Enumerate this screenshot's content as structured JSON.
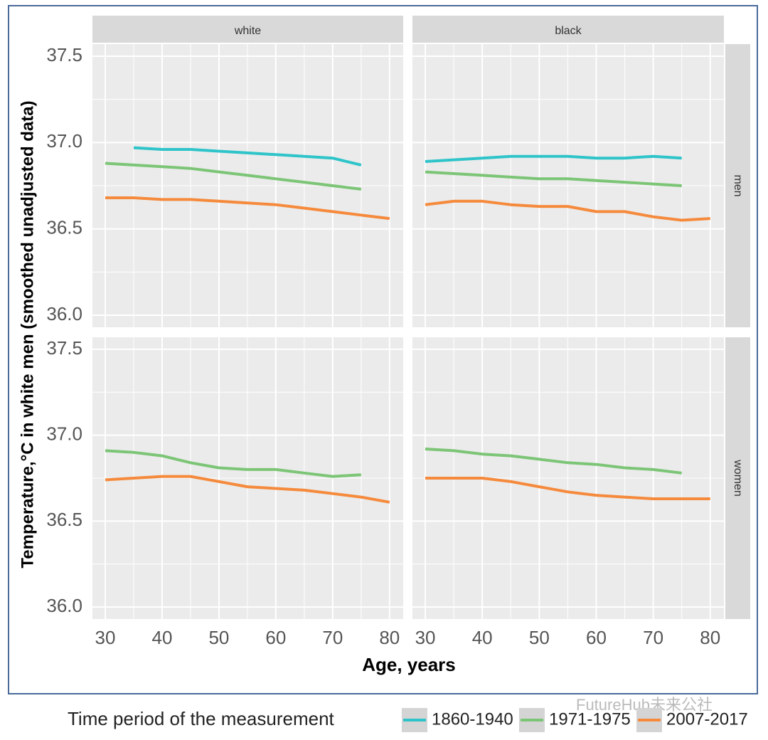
{
  "chart_data": {
    "type": "line",
    "ylabel": "Temperature,°C in white men (smoothed unadjusted data)",
    "xlabel": "Age, years",
    "legend_title": "Time period of the measurement",
    "watermark": "FutureHub未来公社",
    "columns": [
      "white",
      "black"
    ],
    "rows": [
      "men",
      "women"
    ],
    "grid": true,
    "xlim": [
      27.75,
      82.4
    ],
    "xticks": [
      30,
      40,
      50,
      60,
      70,
      80
    ],
    "ylim": [
      35.93,
      37.57
    ],
    "yticks": [
      {
        "value": 36,
        "label": "36.0"
      },
      36.5,
      {
        "value": 37,
        "label": "37.0"
      },
      37.5
    ],
    "x": [
      30,
      35,
      40,
      45,
      50,
      55,
      60,
      65,
      70,
      75,
      80
    ],
    "series": [
      {
        "name": "1860-1940",
        "color": "#2ec4c9"
      },
      {
        "name": "1971-1975",
        "color": "#7cc576"
      },
      {
        "name": "2007-2017",
        "color": "#f58a3c"
      }
    ],
    "panels": [
      [
        {
          "series": [
            {
              "values": [
                null,
                36.97,
                36.96,
                36.96,
                36.95,
                36.94,
                36.93,
                36.92,
                36.91,
                36.87,
                null
              ]
            },
            {
              "values": [
                36.88,
                36.87,
                36.86,
                36.85,
                36.83,
                36.81,
                36.79,
                36.77,
                36.75,
                36.73,
                null
              ]
            },
            {
              "values": [
                36.68,
                36.68,
                36.67,
                36.67,
                36.66,
                36.65,
                36.64,
                36.62,
                36.6,
                36.58,
                36.56
              ]
            }
          ]
        },
        {
          "series": [
            {
              "values": [
                36.89,
                36.9,
                36.91,
                36.92,
                36.92,
                36.92,
                36.91,
                36.91,
                36.92,
                36.91,
                null
              ]
            },
            {
              "values": [
                36.83,
                36.82,
                36.81,
                36.8,
                36.79,
                36.79,
                36.78,
                36.77,
                36.76,
                36.75,
                null
              ]
            },
            {
              "values": [
                36.64,
                36.66,
                36.66,
                36.64,
                36.63,
                36.63,
                36.6,
                36.6,
                36.57,
                36.55,
                36.56
              ]
            }
          ]
        }
      ],
      [
        {
          "series": [
            {
              "values": [
                null,
                null,
                null,
                null,
                null,
                null,
                null,
                null,
                null,
                null,
                null
              ]
            },
            {
              "values": [
                36.91,
                36.9,
                36.88,
                36.84,
                36.81,
                36.8,
                36.8,
                36.78,
                36.76,
                36.77,
                null
              ]
            },
            {
              "values": [
                36.74,
                36.75,
                36.76,
                36.76,
                36.73,
                36.7,
                36.69,
                36.68,
                36.66,
                36.64,
                36.61
              ]
            }
          ]
        },
        {
          "series": [
            {
              "values": [
                null,
                null,
                null,
                null,
                null,
                null,
                null,
                null,
                null,
                null,
                null
              ]
            },
            {
              "values": [
                36.92,
                36.91,
                36.89,
                36.88,
                36.86,
                36.84,
                36.83,
                36.81,
                36.8,
                36.78,
                null
              ]
            },
            {
              "values": [
                36.75,
                36.75,
                36.75,
                36.73,
                36.7,
                36.67,
                36.65,
                36.64,
                36.63,
                36.63,
                36.63
              ]
            }
          ]
        }
      ]
    ]
  }
}
